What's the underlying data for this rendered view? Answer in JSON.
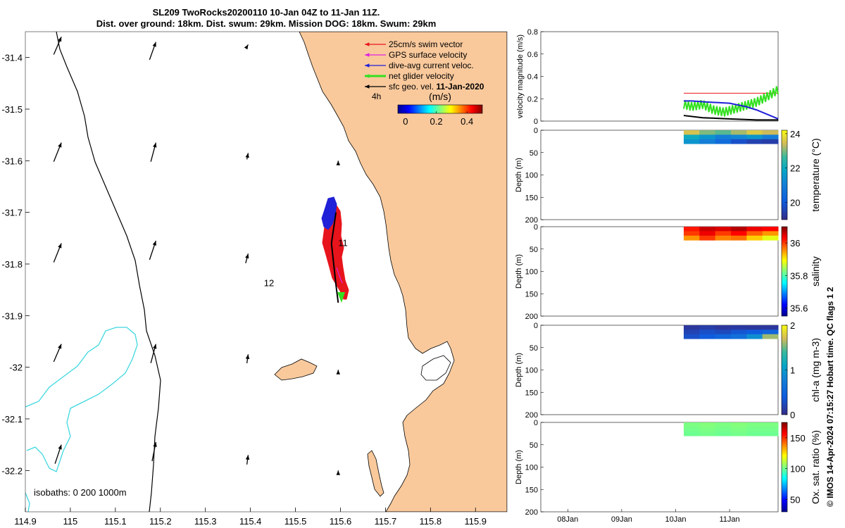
{
  "header": {
    "title_line1": "SL209 TwoRocks20200110 10-Jan 04Z to 11-Jan 11Z.",
    "title_line2": "Dist. over ground: 18km. Dist. swum: 29km. Mission DOG: 18km. Swum: 29km"
  },
  "credit": "© IMOS 14-Apr-2024 07:15:27 Hobart time. QC flags 1  2",
  "colors": {
    "land": "#f9c99c",
    "swim": "#e8141c",
    "gps": "#e020e0",
    "dive": "#2020d8",
    "net": "#33e020",
    "sfc": "#000000",
    "isobath_shallow": "#40d8e0"
  },
  "chart_data": [
    {
      "type": "scatter",
      "xlim": [
        114.9,
        115.97
      ],
      "ylim": [
        -32.28,
        -31.35
      ],
      "xticks": [
        114.9,
        115,
        115.1,
        115.2,
        115.3,
        115.4,
        115.5,
        115.6,
        115.7,
        115.8,
        115.9
      ],
      "xtick_labels": [
        "114.9",
        "115",
        "115.1",
        "115.2",
        "115.3",
        "115.4",
        "115.5",
        "115.6",
        "115.7",
        "115.8",
        "115.9"
      ],
      "yticks": [
        -31.4,
        -31.5,
        -31.6,
        -31.7,
        -31.8,
        -31.9,
        -32,
        -32.1,
        -32.2
      ],
      "ytick_labels": [
        "-31.4",
        "-31.5",
        "-31.6",
        "-31.7",
        "-31.8",
        "-31.9",
        "-32",
        "-32.1",
        "-32.2"
      ],
      "legend": {
        "placement": "top-right",
        "entries": [
          "25cm/s swim vector",
          "GPS surface velocity",
          "dive-avg current veloc.",
          "net glider velocity"
        ],
        "sfc_prefix": "sfc geo. vel. ",
        "sfc_date": "11-Jan-2020",
        "scale_label": "4h"
      },
      "colorbar": {
        "label": "(m/s)",
        "min": -0.05,
        "max": 0.5,
        "tick_values": [
          0,
          0.2,
          0.4
        ],
        "tick_labels": [
          "0",
          "0.2",
          "0.4"
        ]
      },
      "annotations": [
        {
          "text": "11",
          "lon": 115.595,
          "lat": -31.765
        },
        {
          "text": "12",
          "lon": 115.43,
          "lat": -31.843
        }
      ],
      "isobaths_label": "isobaths: 0   200  1000m",
      "vectors": [
        {
          "lon": 114.98,
          "lat": -31.36,
          "u": 0.12,
          "v": 0.28
        },
        {
          "lon": 115.19,
          "lat": -31.37,
          "u": 0.1,
          "v": 0.28
        },
        {
          "lon": 115.395,
          "lat": -31.375,
          "u": 0.03,
          "v": 0.05
        },
        {
          "lon": 114.98,
          "lat": -31.565,
          "u": 0.12,
          "v": 0.3
        },
        {
          "lon": 115.19,
          "lat": -31.565,
          "u": 0.08,
          "v": 0.3
        },
        {
          "lon": 115.395,
          "lat": -31.585,
          "u": 0.02,
          "v": 0.1
        },
        {
          "lon": 115.595,
          "lat": -31.6,
          "u": 0.0,
          "v": 0.05
        },
        {
          "lon": 114.98,
          "lat": -31.76,
          "u": 0.12,
          "v": 0.3
        },
        {
          "lon": 115.19,
          "lat": -31.755,
          "u": 0.1,
          "v": 0.3
        },
        {
          "lon": 115.395,
          "lat": -31.78,
          "u": 0.04,
          "v": 0.15
        },
        {
          "lon": 114.98,
          "lat": -31.955,
          "u": 0.12,
          "v": 0.28
        },
        {
          "lon": 115.19,
          "lat": -31.955,
          "u": 0.08,
          "v": 0.3
        },
        {
          "lon": 115.395,
          "lat": -31.975,
          "u": 0.02,
          "v": 0.14
        },
        {
          "lon": 115.595,
          "lat": -32.005,
          "u": 0.0,
          "v": 0.03
        },
        {
          "lon": 114.98,
          "lat": -32.15,
          "u": 0.1,
          "v": 0.3
        },
        {
          "lon": 115.19,
          "lat": -32.145,
          "u": 0.06,
          "v": 0.3
        },
        {
          "lon": 115.395,
          "lat": -32.17,
          "u": 0.02,
          "v": 0.15
        },
        {
          "lon": 115.595,
          "lat": -32.2,
          "u": 0.0,
          "v": 0.03
        }
      ],
      "track_points": [
        [
          115.59,
          -31.7
        ],
        [
          115.58,
          -31.76
        ],
        [
          115.585,
          -31.8
        ],
        [
          115.59,
          -31.84
        ],
        [
          115.595,
          -31.875
        ]
      ]
    },
    {
      "type": "line",
      "ylabel": "velocity magnitude (m/s)",
      "ylim": [
        0,
        0.8
      ],
      "yticks": [
        0,
        0.2,
        0.4,
        0.6,
        0.8
      ],
      "ytick_labels": [
        "0",
        "0.2",
        "0.4",
        "0.6",
        "0.8"
      ],
      "xlim": [
        7.5,
        11.9
      ],
      "series_net": {
        "t": [
          10.15,
          10.3,
          10.5,
          10.7,
          10.9,
          11.1,
          11.3,
          11.5,
          11.7,
          11.9
        ],
        "values": [
          0.15,
          0.13,
          0.15,
          0.1,
          0.08,
          0.11,
          0.14,
          0.17,
          0.22,
          0.28
        ]
      },
      "series_dive": {
        "t": [
          10.15,
          10.3,
          10.6,
          11.0,
          11.3,
          11.5,
          11.7,
          11.9
        ],
        "values": [
          0.18,
          0.18,
          0.17,
          0.16,
          0.13,
          0.1,
          0.06,
          0.02
        ]
      },
      "series_sfc": {
        "t": [
          10.15,
          10.5,
          11.0,
          11.5,
          11.9
        ],
        "values": [
          0.05,
          0.03,
          0.02,
          0.01,
          0.01
        ]
      },
      "series_swim": {
        "t": [
          10.15,
          11.9
        ],
        "values": [
          0.25,
          0.25
        ]
      }
    },
    {
      "type": "heatmap",
      "var": "temperature",
      "colorbar_label": "temperature (°C)",
      "clim": [
        19,
        24.2
      ],
      "cticks": [
        20,
        22,
        24
      ],
      "ctick_labels": [
        "20",
        "22",
        "24"
      ],
      "ylabel": "Depth (m)",
      "ylim": [
        0,
        200
      ],
      "yticks": [
        0,
        50,
        100,
        150,
        200
      ],
      "ytick_labels": [
        "0",
        "50",
        "100",
        "150",
        "200"
      ],
      "t_range": [
        10.15,
        11.9
      ],
      "depth_range": [
        0,
        30
      ],
      "values": [
        [
          23.5,
          23.0,
          22.8,
          23.2,
          23.6,
          23.4
        ],
        [
          22.0,
          21.5,
          21.0,
          21.2,
          21.5,
          21.0
        ],
        [
          21.5,
          21.0,
          20.5,
          19.8,
          19.5,
          19.4
        ]
      ]
    },
    {
      "type": "heatmap",
      "var": "salinity",
      "colorbar_label": "salinity",
      "clim": [
        35.55,
        36.1
      ],
      "cticks": [
        35.6,
        35.8,
        36
      ],
      "ctick_labels": [
        "35.6",
        "35.8",
        "36"
      ],
      "ylabel": "Depth (m)",
      "ylim": [
        0,
        200
      ],
      "yticks": [
        0,
        50,
        100,
        150,
        200
      ],
      "ytick_labels": [
        "0",
        "50",
        "100",
        "150",
        "200"
      ],
      "t_range": [
        10.15,
        11.9
      ],
      "depth_range": [
        0,
        30
      ],
      "values": [
        [
          36.02,
          36.06,
          36.05,
          36.07,
          36.04,
          36.03
        ],
        [
          36.0,
          36.04,
          36.0,
          36.03,
          35.98,
          35.95
        ],
        [
          35.95,
          36.0,
          35.96,
          35.97,
          35.92,
          35.88
        ]
      ]
    },
    {
      "type": "heatmap",
      "var": "chl-a",
      "colorbar_label": "chl-a (mg m-3)",
      "clim": [
        0,
        2
      ],
      "cticks": [
        0,
        1,
        2
      ],
      "ctick_labels": [
        "0",
        "1",
        "2"
      ],
      "ylabel": "Depth (m)",
      "ylim": [
        0,
        200
      ],
      "yticks": [
        0,
        50,
        100,
        150,
        200
      ],
      "ytick_labels": [
        "0",
        "50",
        "100",
        "150",
        "200"
      ],
      "t_range": [
        10.15,
        11.9
      ],
      "depth_range": [
        0,
        30
      ],
      "values": [
        [
          0.1,
          0.15,
          0.1,
          0.12,
          0.1,
          0.1
        ],
        [
          0.2,
          0.3,
          0.25,
          0.35,
          0.4,
          0.5
        ],
        [
          0.3,
          0.4,
          0.5,
          0.6,
          0.9,
          1.6
        ]
      ]
    },
    {
      "type": "heatmap",
      "var": "oxygen",
      "colorbar_label": "Ox. sat. ratio (%)",
      "clim": [
        30,
        175
      ],
      "cticks": [
        50,
        100,
        150
      ],
      "ctick_labels": [
        "50",
        "100",
        "150"
      ],
      "ylabel": "Depth (m)",
      "ylim": [
        0,
        200
      ],
      "yticks": [
        0,
        50,
        100,
        150,
        200
      ],
      "ytick_labels": [
        "0",
        "50",
        "100",
        "150",
        "200"
      ],
      "t_range": [
        10.15,
        11.9
      ],
      "depth_range": [
        0,
        30
      ],
      "values": [
        [
          102,
          103,
          102,
          103,
          102,
          102
        ],
        [
          101,
          102,
          101,
          102,
          101,
          101
        ],
        [
          100,
          101,
          100,
          101,
          100,
          100
        ]
      ],
      "xticks": [
        8,
        9,
        10,
        11
      ],
      "xtick_labels": [
        "08Jan",
        "09Jan",
        "10Jan",
        "11Jan"
      ]
    }
  ]
}
